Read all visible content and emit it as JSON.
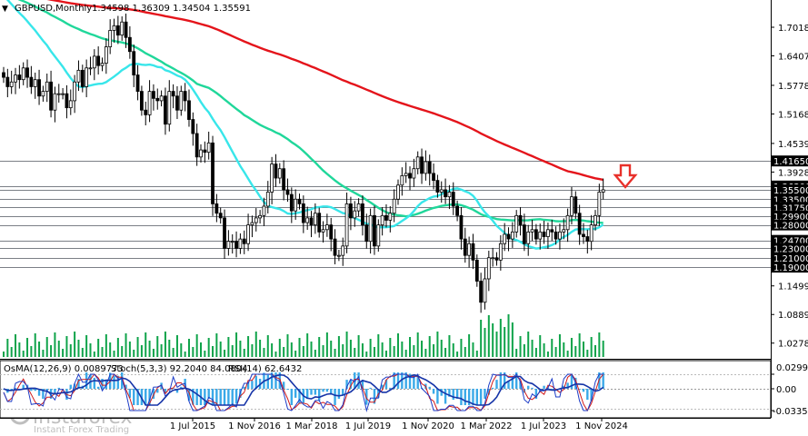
{
  "header": {
    "symbol_text": "GBPUSD,Monthly",
    "ohlc_text": "1.34598 1.36309 1.34504 1.35591"
  },
  "indicator_header": {
    "osma": "OsMA(12,26,9) 0.0089773",
    "stoch": "Stoch(5,3,3) 92.2040 84.0804",
    "rsi": "RSI(14) 62.6432"
  },
  "watermark": {
    "brand": "instaforex",
    "tagline": "Instant Forex Trading"
  },
  "signal": {
    "icon": "down-arrow-icon",
    "direction": "down",
    "color": "#e8302a"
  },
  "colors": {
    "ma_red": "#e4141b",
    "ma_green": "#20d79a",
    "ma_cyan": "#38e6ea",
    "candles": "#000000",
    "volume": "#0fa34a",
    "osma_hist": "#3aa9e8",
    "osma_line": "#1634a8",
    "stoch_main": "#1d3cc7",
    "stoch_signal": "#d11a1a",
    "price_label_bg": "#000000"
  },
  "chart_data": {
    "type": "candlestick",
    "title": "GBPUSD,Monthly",
    "y_ticks": [
      "1.70180",
      "1.64075",
      "1.57785",
      "1.51680",
      "1.45390",
      "1.39285",
      "1.33350",
      "1.14995",
      "1.08890",
      "1.02785"
    ],
    "price_levels": [
      "1.41650",
      "1.36300",
      "1.35500",
      "1.33500",
      "1.31750",
      "1.29900",
      "1.28000",
      "1.24700",
      "1.23000",
      "1.21000",
      "1.19000"
    ],
    "x_labels": [
      "1 Jul 2015",
      "1 Nov 2016",
      "1 Mar 2018",
      "1 Jul 2019",
      "1 Nov 2020",
      "1 Mar 2022",
      "1 Jul 2023",
      "1 Nov 2024"
    ],
    "ylim": [
      1.01,
      1.73
    ],
    "series_close": [
      1.595,
      1.575,
      1.585,
      1.6,
      1.59,
      1.615,
      1.595,
      1.575,
      1.59,
      1.555,
      1.565,
      1.585,
      1.525,
      1.56,
      1.56,
      1.56,
      1.53,
      1.545,
      1.585,
      1.61,
      1.575,
      1.615,
      1.615,
      1.64,
      1.62,
      1.625,
      1.66,
      1.695,
      1.705,
      1.685,
      1.713,
      1.68,
      1.65,
      1.6,
      1.565,
      1.525,
      1.515,
      1.565,
      1.55,
      1.545,
      1.555,
      1.495,
      1.565,
      1.555,
      1.525,
      1.565,
      1.545,
      1.505,
      1.475,
      1.425,
      1.44,
      1.435,
      1.455,
      1.325,
      1.305,
      1.295,
      1.23,
      1.245,
      1.245,
      1.23,
      1.25,
      1.24,
      1.28,
      1.285,
      1.295,
      1.3,
      1.32,
      1.35,
      1.41,
      1.38,
      1.4,
      1.355,
      1.345,
      1.31,
      1.335,
      1.325,
      1.285,
      1.295,
      1.28,
      1.305,
      1.265,
      1.27,
      1.28,
      1.25,
      1.215,
      1.215,
      1.235,
      1.325,
      1.295,
      1.31,
      1.325,
      1.28,
      1.245,
      1.3,
      1.235,
      1.28,
      1.3,
      1.29,
      1.305,
      1.335,
      1.365,
      1.385,
      1.39,
      1.38,
      1.4,
      1.425,
      1.39,
      1.415,
      1.39,
      1.375,
      1.35,
      1.355,
      1.34,
      1.35,
      1.32,
      1.3,
      1.25,
      1.215,
      1.24,
      1.205,
      1.16,
      1.115,
      1.165,
      1.21,
      1.21,
      1.205,
      1.24,
      1.26,
      1.25,
      1.265,
      1.3,
      1.28,
      1.24,
      1.265,
      1.27,
      1.25,
      1.265,
      1.255,
      1.27,
      1.265,
      1.25,
      1.265,
      1.27,
      1.3,
      1.34,
      1.305,
      1.26,
      1.255,
      1.245,
      1.28,
      1.3,
      1.35,
      1.355
    ]
  }
}
